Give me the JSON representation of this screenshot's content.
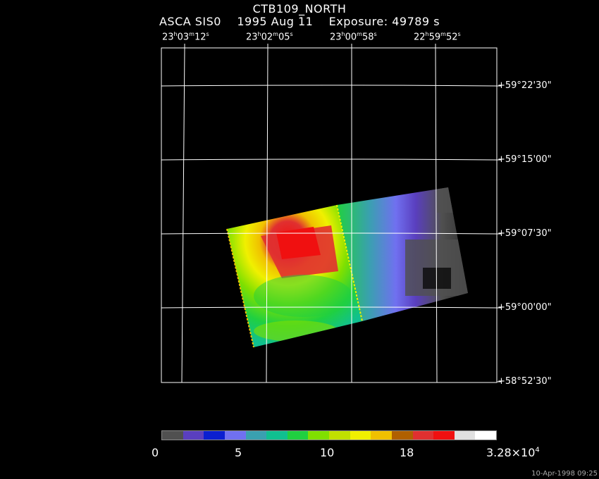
{
  "header": {
    "title": "CTB109_NORTH",
    "subtitle": "ASCA SIS0    1995 Aug 11    Exposure: 49789 s"
  },
  "axes": {
    "ra_ticks": [
      {
        "h": "23",
        "m": "03",
        "s": "12"
      },
      {
        "h": "23",
        "m": "02",
        "s": "05"
      },
      {
        "h": "23",
        "m": "00",
        "s": "58"
      },
      {
        "h": "22",
        "m": "59",
        "s": "52"
      }
    ],
    "dec_ticks": [
      "+59°22'30\"",
      "+59°15'00\"",
      "+59°07'30\"",
      "+59°00'00\"",
      "+58°52'30\""
    ]
  },
  "colorbar": {
    "colors": [
      "#505050",
      "#5a3fbf",
      "#0b1fd0",
      "#7070f0",
      "#3aa0b0",
      "#10c090",
      "#20d040",
      "#80e000",
      "#c0e000",
      "#f0f000",
      "#f0c000",
      "#b06000",
      "#e03030",
      "#f01010",
      "#e0e0e0",
      "#ffffff"
    ],
    "labels": [
      "0",
      "5",
      "10",
      "18"
    ],
    "max_label": "3.28×10",
    "max_exp": "4"
  },
  "stamp": "10-Apr-1998 09:25"
}
